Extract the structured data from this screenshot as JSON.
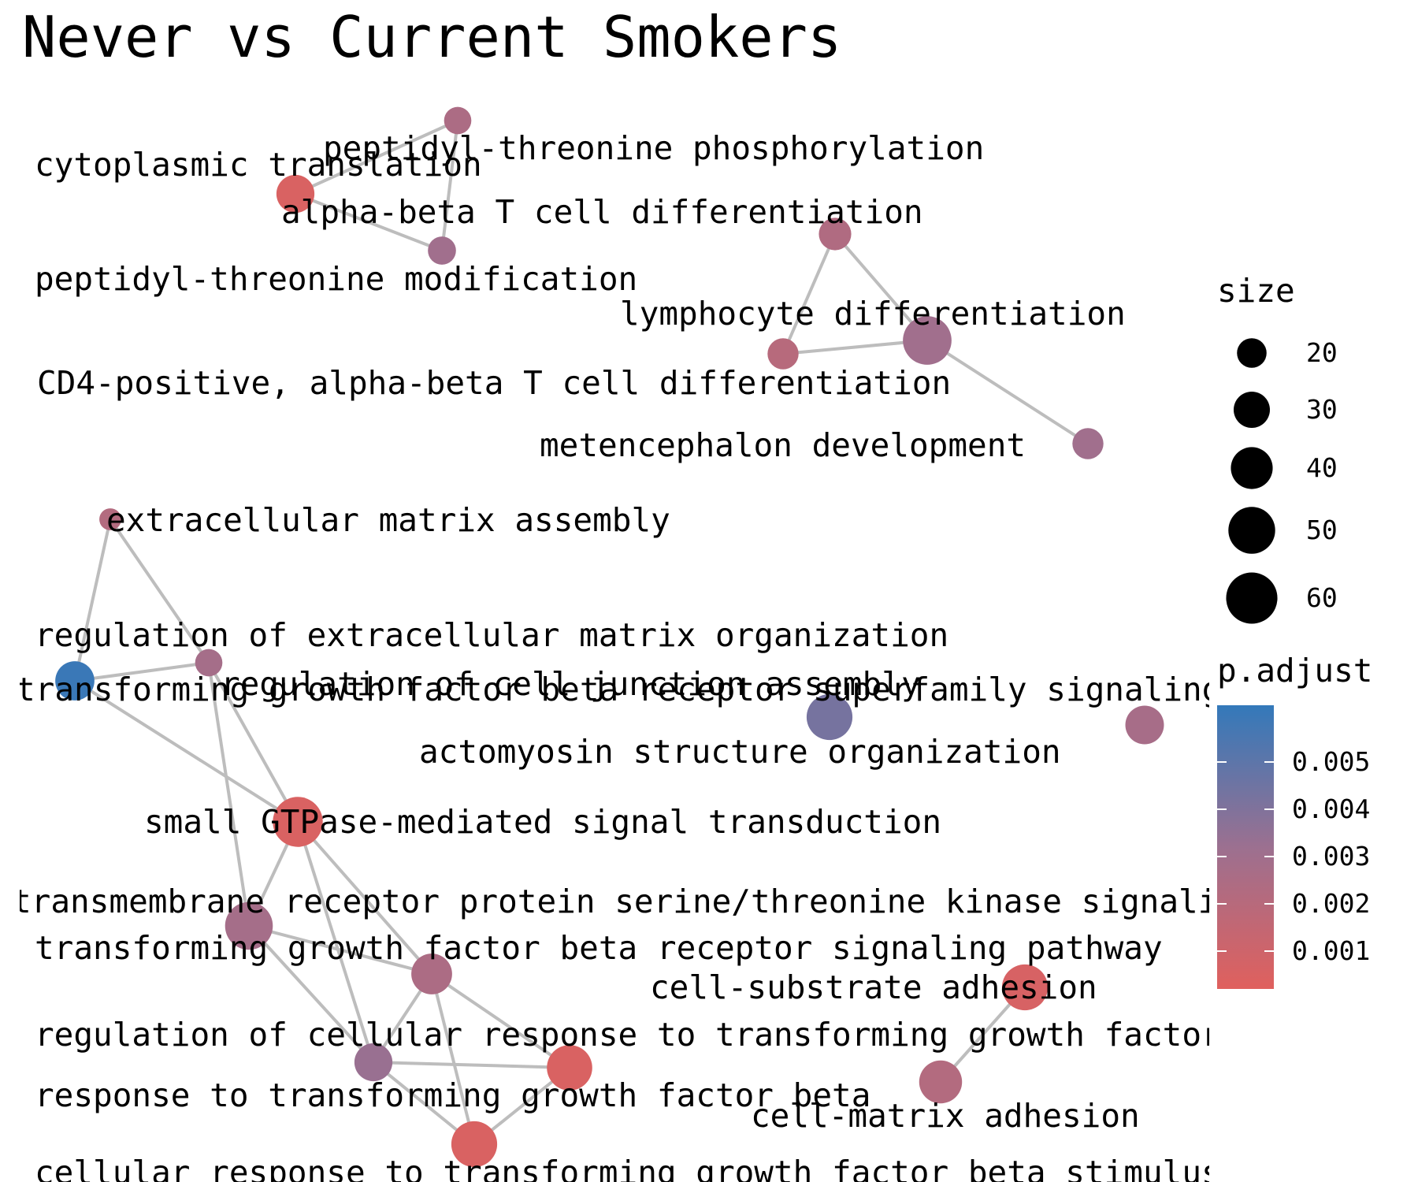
{
  "title": "Never vs Current Smokers",
  "legend": {
    "size_title": "size",
    "size_breaks": [
      "20",
      "30",
      "40",
      "50",
      "60"
    ],
    "color_title": "p.adjust",
    "color_breaks": [
      "0.005",
      "0.004",
      "0.003",
      "0.002",
      "0.001"
    ],
    "color_low": "#e0605d",
    "color_mid": "#9c7090",
    "color_high": "#3379ba"
  },
  "chart_data": {
    "type": "network",
    "nodes": [
      {
        "id": "n1",
        "label": "peptidyl-threonine phosphorylation",
        "size": 17,
        "p_adjust": 0.0025
      },
      {
        "id": "n2",
        "label": "cytoplasmic translation",
        "size": 33,
        "p_adjust": 0.0005
      },
      {
        "id": "n3",
        "label": "peptidyl-threonine modification",
        "size": 18,
        "p_adjust": 0.003
      },
      {
        "id": "n4",
        "label": "alpha-beta T cell differentiation",
        "size": 24,
        "p_adjust": 0.0023
      },
      {
        "id": "n5",
        "label": "lymphocyte differentiation",
        "size": 54,
        "p_adjust": 0.003
      },
      {
        "id": "n6",
        "label": "CD4-positive, alpha-beta T cell differentiation",
        "size": 22,
        "p_adjust": 0.002
      },
      {
        "id": "n7",
        "label": "metencephalon development",
        "size": 22,
        "p_adjust": 0.003
      },
      {
        "id": "n8",
        "label": "extracellular matrix assembly",
        "size": 11,
        "p_adjust": 0.0022
      },
      {
        "id": "n9",
        "label": "regulation of extracellular matrix organization",
        "size": 17,
        "p_adjust": 0.0028
      },
      {
        "id": "n10",
        "label": "transforming growth factor beta receptor superfamily signaling pathway",
        "size": 35,
        "p_adjust": 0.006
      },
      {
        "id": "n11",
        "label": "regulation of cell junction assembly",
        "size": 48,
        "p_adjust": 0.0043
      },
      {
        "id": "n12",
        "label": "actomyosin structure organization",
        "size": 34,
        "p_adjust": 0.0027
      },
      {
        "id": "n13",
        "label": "small GTPase-mediated signal transduction",
        "size": 57,
        "p_adjust": 0.0005
      },
      {
        "id": "n14",
        "label": "transmembrane receptor protein serine/threonine kinase signaling pathway",
        "size": 52,
        "p_adjust": 0.0028
      },
      {
        "id": "n15",
        "label": "transforming growth factor beta receptor signaling pathway",
        "size": 38,
        "p_adjust": 0.0025
      },
      {
        "id": "n16",
        "label": "cell-substrate adhesion",
        "size": 48,
        "p_adjust": 0.0006
      },
      {
        "id": "n17",
        "label": "regulation of cellular response to transforming growth factor beta stimulus",
        "size": 33,
        "p_adjust": 0.0033
      },
      {
        "id": "n18",
        "label": "response to transforming growth factor beta",
        "size": 47,
        "p_adjust": 0.0005
      },
      {
        "id": "n19",
        "label": "cell-matrix adhesion",
        "size": 42,
        "p_adjust": 0.0022
      },
      {
        "id": "n20",
        "label": "cellular response to transforming growth factor beta stimulus",
        "size": 48,
        "p_adjust": 0.0005
      }
    ],
    "edges": [
      [
        "n1",
        "n2"
      ],
      [
        "n1",
        "n3"
      ],
      [
        "n2",
        "n3"
      ],
      [
        "n4",
        "n6"
      ],
      [
        "n4",
        "n5"
      ],
      [
        "n6",
        "n5"
      ],
      [
        "n5",
        "n7"
      ],
      [
        "n8",
        "n10"
      ],
      [
        "n8",
        "n9"
      ],
      [
        "n10",
        "n9"
      ],
      [
        "n10",
        "n13"
      ],
      [
        "n9",
        "n13"
      ],
      [
        "n9",
        "n14"
      ],
      [
        "n13",
        "n14"
      ],
      [
        "n13",
        "n15"
      ],
      [
        "n13",
        "n17"
      ],
      [
        "n14",
        "n15"
      ],
      [
        "n14",
        "n17"
      ],
      [
        "n15",
        "n17"
      ],
      [
        "n15",
        "n20"
      ],
      [
        "n15",
        "n18"
      ],
      [
        "n17",
        "n18"
      ],
      [
        "n17",
        "n20"
      ],
      [
        "n18",
        "n20"
      ],
      [
        "n16",
        "n19"
      ]
    ]
  }
}
